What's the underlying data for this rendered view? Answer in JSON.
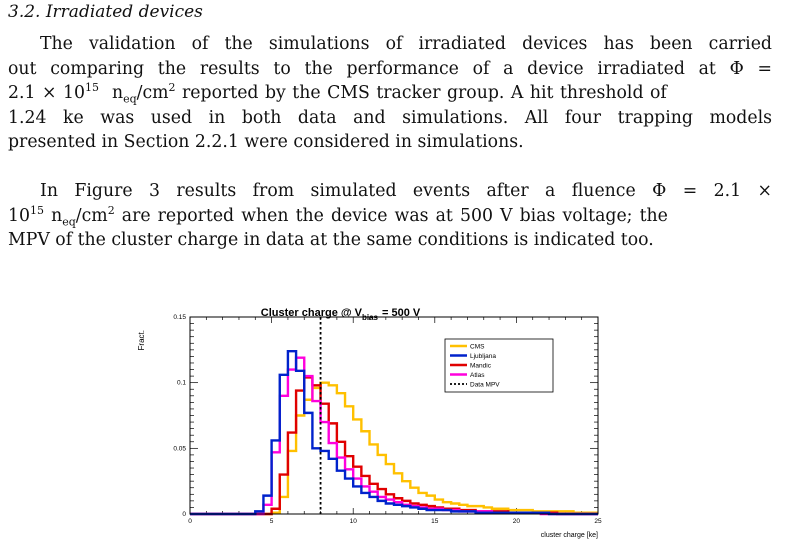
{
  "section": {
    "title": "3.2. Irradiated devices"
  },
  "para1": {
    "l1": "The validation of the simulations of irradiated devices has been carried",
    "l2a": "out comparing the results to the performance of a device irradiated at Φ =",
    "l3a": "2.1 × 10",
    "l3exp": "15",
    "l3unit": "n",
    "l3sub": "eq",
    "l3b": "/cm",
    "l3sq": "2",
    "l3c": " reported by the CMS tracker group. A hit threshold of",
    "l4": "1.24 ke was used in both data and simulations. All four trapping models",
    "l5": "presented in Section 2.2.1 were considered in simulations."
  },
  "para2": {
    "l1": "In Figure 3 results from simulated events after a fluence Φ = 2.1 ×",
    "l2a": "10",
    "l2exp": "15",
    "l2unit": "n",
    "l2sub": "eq",
    "l2b": "/cm",
    "l2sq": "2",
    "l2c": " are reported when the device was at 500 V bias voltage; the",
    "l3": "MPV of the cluster charge in data at the same conditions is indicated too."
  },
  "chart_data": {
    "type": "line",
    "title_main": "Cluster charge @ V",
    "title_sub": "bias",
    "title_tail": " = 500 V",
    "xlabel": "cluster charge [ke]",
    "ylabel": "Fract.",
    "xlim": [
      0,
      25
    ],
    "ylim": [
      0,
      0.15
    ],
    "xticks": [
      "0",
      "5",
      "10",
      "15",
      "20",
      "25"
    ],
    "yticks": [
      "0",
      "0.05",
      "0.1",
      "0.15"
    ],
    "bin_width": 0.5,
    "bin_start": 0,
    "legend_position": "top-right",
    "data_mpv": 8,
    "series": [
      {
        "name": "CMS",
        "color": "#ffc000",
        "dash": false,
        "values": [
          0,
          0,
          0,
          0,
          0,
          0,
          0,
          0,
          0,
          0,
          0.001,
          0.013,
          0.048,
          0.075,
          0.087,
          0.096,
          0.1,
          0.098,
          0.092,
          0.082,
          0.072,
          0.063,
          0.053,
          0.045,
          0.038,
          0.031,
          0.025,
          0.02,
          0.016,
          0.014,
          0.011,
          0.009,
          0.008,
          0.007,
          0.006,
          0.006,
          0.005,
          0.004,
          0.004,
          0.003,
          0.003,
          0.003,
          0.002,
          0.002,
          0.002,
          0.002,
          0.002,
          0.001,
          0.001,
          0.001
        ]
      },
      {
        "name": "Ljubljana",
        "color": "#0022cc",
        "dash": false,
        "values": [
          0,
          0,
          0,
          0,
          0,
          0,
          0,
          0,
          0.002,
          0.014,
          0.056,
          0.106,
          0.124,
          0.109,
          0.077,
          0.05,
          0.048,
          0.042,
          0.033,
          0.027,
          0.021,
          0.016,
          0.013,
          0.01,
          0.008,
          0.007,
          0.006,
          0.005,
          0.004,
          0.003,
          0.003,
          0.003,
          0.002,
          0.002,
          0.002,
          0.001,
          0.001,
          0.001,
          0.001,
          0.001,
          0.001,
          0.001,
          0.001,
          0.001,
          0,
          0,
          0,
          0,
          0,
          0
        ]
      },
      {
        "name": "Mandic",
        "color": "#e00000",
        "dash": false,
        "values": [
          0,
          0,
          0,
          0,
          0,
          0,
          0,
          0,
          0,
          0,
          0.004,
          0.03,
          0.062,
          0.094,
          0.104,
          0.098,
          0.084,
          0.069,
          0.055,
          0.044,
          0.036,
          0.029,
          0.023,
          0.019,
          0.015,
          0.012,
          0.01,
          0.008,
          0.007,
          0.006,
          0.005,
          0.004,
          0.004,
          0.003,
          0.003,
          0.002,
          0.002,
          0.002,
          0.002,
          0.001,
          0.001,
          0.001,
          0.001,
          0.001,
          0.001,
          0,
          0,
          0,
          0,
          0
        ]
      },
      {
        "name": "Atlas",
        "color": "#ff00dd",
        "dash": false,
        "values": [
          0,
          0,
          0,
          0,
          0,
          0,
          0,
          0,
          0,
          0.007,
          0.047,
          0.09,
          0.11,
          0.119,
          0.105,
          0.086,
          0.07,
          0.054,
          0.043,
          0.034,
          0.027,
          0.021,
          0.017,
          0.013,
          0.011,
          0.009,
          0.007,
          0.006,
          0.005,
          0.004,
          0.004,
          0.003,
          0.003,
          0.002,
          0.002,
          0.002,
          0.002,
          0.001,
          0.001,
          0.001,
          0.001,
          0.001,
          0.001,
          0,
          0,
          0,
          0,
          0,
          0,
          0
        ]
      },
      {
        "name": "Data MPV",
        "color": "#000000",
        "dash": true,
        "values": []
      }
    ]
  }
}
